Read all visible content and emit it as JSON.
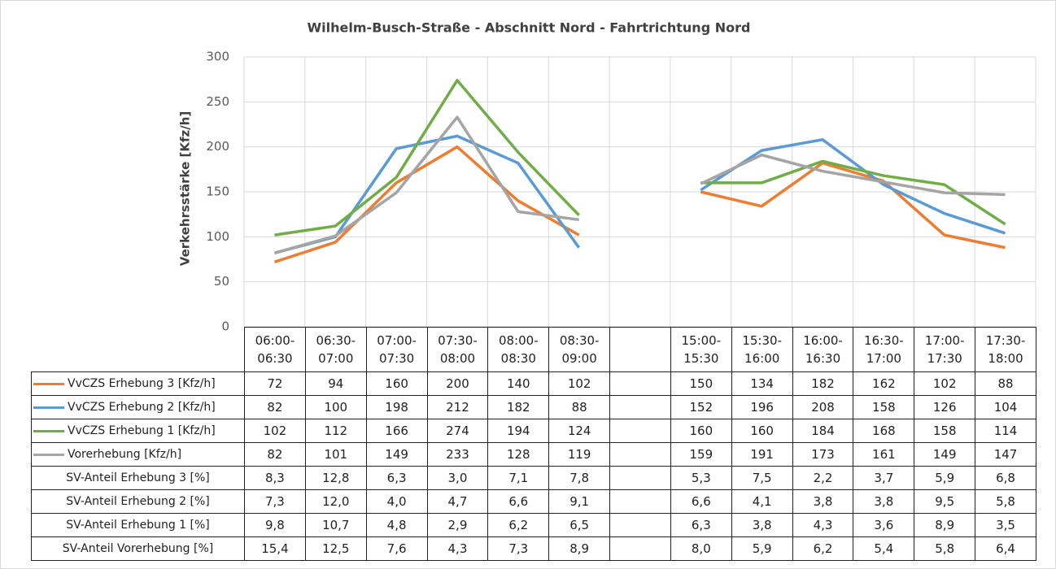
{
  "chart_data": {
    "type": "line",
    "title": "Wilhelm-Busch-Straße - Abschnitt Nord - Fahrtrichtung Nord",
    "y_label": "Verkehrsstärke [Kfz/h]",
    "categories": [
      "06:00-06:30",
      "06:30-07:00",
      "07:00-07:30",
      "07:30-08:00",
      "08:00-08:30",
      "08:30-09:00",
      null,
      "15:00-15:30",
      "15:30-16:00",
      "16:00-16:30",
      "16:30-17:00",
      "17:00-17:30",
      "17:30-18:00"
    ],
    "ylim": [
      0,
      300
    ],
    "yticks": [
      0,
      50,
      100,
      150,
      200,
      250,
      300
    ],
    "grid": true,
    "series": [
      {
        "name": "VvCZS Erhebung 3 [Kfz/h]",
        "color": "#ed7d31",
        "values": [
          72,
          94,
          160,
          200,
          140,
          102,
          null,
          150,
          134,
          182,
          162,
          102,
          88
        ]
      },
      {
        "name": "VvCZS Erhebung 2 [Kfz/h]",
        "color": "#5b9bd5",
        "values": [
          82,
          100,
          198,
          212,
          182,
          88,
          null,
          152,
          196,
          208,
          158,
          126,
          104
        ]
      },
      {
        "name": "VvCZS Erhebung 1 [Kfz/h]",
        "color": "#70ad47",
        "values": [
          102,
          112,
          166,
          274,
          194,
          124,
          null,
          160,
          160,
          184,
          168,
          158,
          114
        ]
      },
      {
        "name": "Vorerhebung [Kfz/h]",
        "color": "#a5a5a5",
        "values": [
          82,
          101,
          149,
          233,
          128,
          119,
          null,
          159,
          191,
          173,
          161,
          149,
          147
        ]
      }
    ],
    "table_rows": [
      {
        "name": "SV-Anteil Erhebung 3 [%]",
        "values": [
          "8,3",
          "12,8",
          "6,3",
          "3,0",
          "7,1",
          "7,8",
          null,
          "5,3",
          "7,5",
          "2,2",
          "3,7",
          "5,9",
          "6,8"
        ]
      },
      {
        "name": "SV-Anteil Erhebung 2 [%]",
        "values": [
          "7,3",
          "12,0",
          "4,0",
          "4,7",
          "6,6",
          "9,1",
          null,
          "6,6",
          "4,1",
          "3,8",
          "3,8",
          "9,5",
          "5,8"
        ]
      },
      {
        "name": "SV-Anteil Erhebung 1 [%]",
        "values": [
          "9,8",
          "10,7",
          "4,8",
          "2,9",
          "6,2",
          "6,5",
          null,
          "6,3",
          "3,8",
          "4,3",
          "3,6",
          "8,9",
          "3,5"
        ]
      },
      {
        "name": "SV-Anteil Vorerhebung [%]",
        "values": [
          "15,4",
          "12,5",
          "7,6",
          "4,3",
          "7,3",
          "8,9",
          null,
          "8,0",
          "5,9",
          "6,2",
          "5,4",
          "5,8",
          "6,4"
        ]
      }
    ]
  }
}
